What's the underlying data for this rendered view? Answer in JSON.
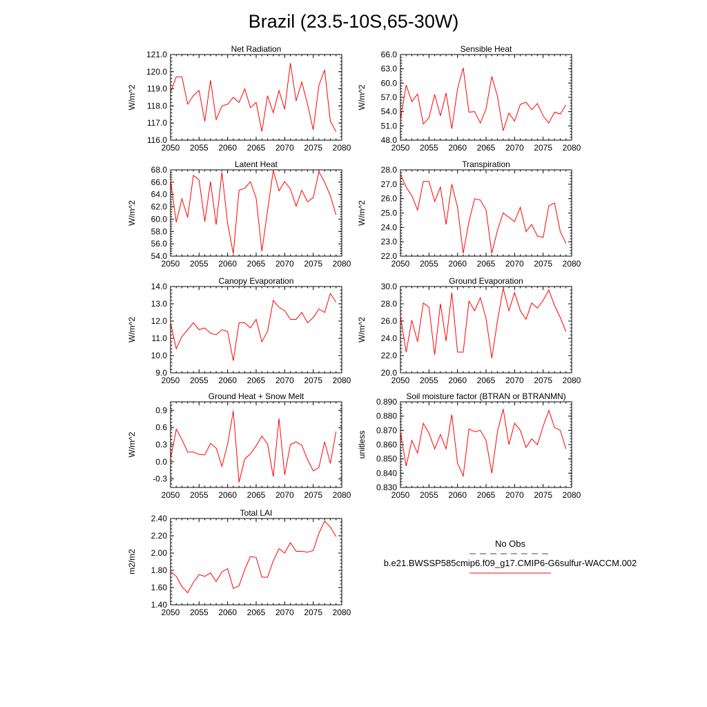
{
  "figure": {
    "title": "Brazil (23.5-10S,65-30W)",
    "line_color": "#ff0000",
    "axis_color": "#000000"
  },
  "legend": {
    "obs_label": "No Obs",
    "obs_line_color": "#3a3ab0",
    "case_label": "b.e21.BWSSP585cmip6.f09_g17.CMIP6-G6sulfur-WACCM.002",
    "case_line_color": "#ff0000"
  },
  "chart_data": [
    {
      "type": "line",
      "title": "Net Radiation",
      "ylabel": "W/m^2",
      "xlim": [
        2050,
        2080
      ],
      "ylim": [
        116.0,
        121.0
      ],
      "yticks": [
        "116.0",
        "117.0",
        "118.0",
        "119.0",
        "120.0",
        "121.0"
      ],
      "xticks": [
        "2050",
        "2055",
        "2060",
        "2065",
        "2070",
        "2075",
        "2080"
      ],
      "x": [
        2050,
        2051,
        2052,
        2053,
        2054,
        2055,
        2056,
        2057,
        2058,
        2059,
        2060,
        2061,
        2062,
        2063,
        2064,
        2065,
        2066,
        2067,
        2068,
        2069,
        2070,
        2071,
        2072,
        2073,
        2074,
        2075,
        2076,
        2077,
        2078,
        2079
      ],
      "values": [
        118.8,
        119.7,
        119.7,
        118.1,
        118.6,
        118.9,
        117.1,
        119.5,
        117.2,
        118.0,
        118.1,
        118.5,
        118.2,
        119.0,
        117.9,
        118.2,
        116.5,
        118.6,
        117.6,
        118.9,
        117.8,
        120.5,
        118.3,
        119.4,
        118.1,
        116.6,
        119.2,
        120.1,
        117.1,
        116.5
      ]
    },
    {
      "type": "line",
      "title": "Sensible Heat",
      "ylabel": "W/m^2",
      "xlim": [
        2050,
        2080
      ],
      "ylim": [
        48.0,
        66.0
      ],
      "yticks": [
        "48.0",
        "51.0",
        "54.0",
        "57.0",
        "60.0",
        "63.0",
        "66.0"
      ],
      "xticks": [
        "2050",
        "2055",
        "2060",
        "2065",
        "2070",
        "2075",
        "2080"
      ],
      "x": [
        2050,
        2051,
        2052,
        2053,
        2054,
        2055,
        2056,
        2057,
        2058,
        2059,
        2060,
        2061,
        2062,
        2063,
        2064,
        2065,
        2066,
        2067,
        2068,
        2069,
        2070,
        2071,
        2072,
        2073,
        2074,
        2075,
        2076,
        2077,
        2078,
        2079
      ],
      "values": [
        52.2,
        59.6,
        56.1,
        57.7,
        51.4,
        52.7,
        57.6,
        53.1,
        57.9,
        50.4,
        58.8,
        63.2,
        53.9,
        54.0,
        51.6,
        54.6,
        61.4,
        57.2,
        50.0,
        53.7,
        52.0,
        55.5,
        56.0,
        54.4,
        55.7,
        53.1,
        51.6,
        53.9,
        53.5,
        55.4
      ]
    },
    {
      "type": "line",
      "title": "Latent Heat",
      "ylabel": "W/m^2",
      "xlim": [
        2050,
        2080
      ],
      "ylim": [
        54.0,
        68.0
      ],
      "yticks": [
        "54.0",
        "56.0",
        "58.0",
        "60.0",
        "62.0",
        "64.0",
        "66.0",
        "68.0"
      ],
      "xticks": [
        "2050",
        "2055",
        "2060",
        "2065",
        "2070",
        "2075",
        "2080"
      ],
      "x": [
        2050,
        2051,
        2052,
        2053,
        2054,
        2055,
        2056,
        2057,
        2058,
        2059,
        2060,
        2061,
        2062,
        2063,
        2064,
        2065,
        2066,
        2067,
        2068,
        2069,
        2070,
        2071,
        2072,
        2073,
        2074,
        2075,
        2076,
        2077,
        2078,
        2079
      ],
      "values": [
        66.3,
        59.5,
        63.3,
        60.3,
        67.1,
        66.4,
        59.6,
        66.1,
        59.1,
        67.6,
        59.3,
        54.4,
        64.7,
        65.0,
        66.1,
        63.4,
        54.8,
        61.4,
        67.9,
        64.6,
        66.1,
        64.9,
        62.1,
        64.7,
        62.8,
        63.5,
        67.7,
        66.0,
        63.8,
        60.7
      ]
    },
    {
      "type": "line",
      "title": "Transpiration",
      "ylabel": "W/m^2",
      "xlim": [
        2050,
        2080
      ],
      "ylim": [
        22.0,
        28.0
      ],
      "yticks": [
        "22.0",
        "23.0",
        "24.0",
        "25.0",
        "26.0",
        "27.0",
        "28.0"
      ],
      "xticks": [
        "2050",
        "2055",
        "2060",
        "2065",
        "2070",
        "2075",
        "2080"
      ],
      "x": [
        2050,
        2051,
        2052,
        2053,
        2054,
        2055,
        2056,
        2057,
        2058,
        2059,
        2060,
        2061,
        2062,
        2063,
        2064,
        2065,
        2066,
        2067,
        2068,
        2069,
        2070,
        2071,
        2072,
        2073,
        2074,
        2075,
        2076,
        2077,
        2078,
        2079
      ],
      "values": [
        27.7,
        26.8,
        26.2,
        25.2,
        27.2,
        27.2,
        25.8,
        26.8,
        24.2,
        27.0,
        25.4,
        22.2,
        24.4,
        26.0,
        25.9,
        25.2,
        22.2,
        23.8,
        25.0,
        24.7,
        24.4,
        25.4,
        23.7,
        24.2,
        23.4,
        23.3,
        25.5,
        25.7,
        23.7,
        22.9
      ]
    },
    {
      "type": "line",
      "title": "Canopy Evaporation",
      "ylabel": "W/m^2",
      "xlim": [
        2050,
        2080
      ],
      "ylim": [
        9.0,
        14.0
      ],
      "yticks": [
        "9.0",
        "10.0",
        "11.0",
        "12.0",
        "13.0",
        "14.0"
      ],
      "xticks": [
        "2050",
        "2055",
        "2060",
        "2065",
        "2070",
        "2075",
        "2080"
      ],
      "x": [
        2050,
        2051,
        2052,
        2053,
        2054,
        2055,
        2056,
        2057,
        2058,
        2059,
        2060,
        2061,
        2062,
        2063,
        2064,
        2065,
        2066,
        2067,
        2068,
        2069,
        2070,
        2071,
        2072,
        2073,
        2074,
        2075,
        2076,
        2077,
        2078,
        2079
      ],
      "values": [
        11.9,
        10.4,
        11.1,
        11.5,
        11.9,
        11.5,
        11.6,
        11.3,
        11.2,
        11.5,
        11.4,
        9.7,
        11.9,
        11.9,
        11.6,
        12.1,
        10.8,
        11.4,
        13.2,
        12.8,
        12.6,
        12.1,
        12.1,
        12.5,
        11.9,
        12.2,
        12.7,
        12.5,
        13.6,
        13.1
      ]
    },
    {
      "type": "line",
      "title": "Ground Evaporation",
      "ylabel": "W/m^2",
      "xlim": [
        2050,
        2080
      ],
      "ylim": [
        20.0,
        30.0
      ],
      "yticks": [
        "20.0",
        "22.0",
        "24.0",
        "26.0",
        "28.0",
        "30.0"
      ],
      "xticks": [
        "2050",
        "2055",
        "2060",
        "2065",
        "2070",
        "2075",
        "2080"
      ],
      "x": [
        2050,
        2051,
        2052,
        2053,
        2054,
        2055,
        2056,
        2057,
        2058,
        2059,
        2060,
        2061,
        2062,
        2063,
        2064,
        2065,
        2066,
        2067,
        2068,
        2069,
        2070,
        2071,
        2072,
        2073,
        2074,
        2075,
        2076,
        2077,
        2078,
        2079
      ],
      "values": [
        26.6,
        22.4,
        26.1,
        23.6,
        28.1,
        27.6,
        22.1,
        28.0,
        23.7,
        29.3,
        22.4,
        22.4,
        28.3,
        27.2,
        28.7,
        26.3,
        21.7,
        26.0,
        29.8,
        27.2,
        29.3,
        27.2,
        26.2,
        28.1,
        27.5,
        28.4,
        29.6,
        27.8,
        26.4,
        24.8
      ]
    },
    {
      "type": "line",
      "title": "Ground Heat + Snow Melt",
      "ylabel": "W/m^2",
      "xlim": [
        2050,
        2080
      ],
      "ylim": [
        -0.45,
        1.05
      ],
      "yticks": [
        "-0.3",
        "0.0",
        "0.3",
        "0.6",
        "0.9"
      ],
      "ytick_values": [
        -0.3,
        0.0,
        0.3,
        0.6,
        0.9
      ],
      "xticks": [
        "2050",
        "2055",
        "2060",
        "2065",
        "2070",
        "2075",
        "2080"
      ],
      "x": [
        2050,
        2051,
        2052,
        2053,
        2054,
        2055,
        2056,
        2057,
        2058,
        2059,
        2060,
        2061,
        2062,
        2063,
        2064,
        2065,
        2066,
        2067,
        2068,
        2069,
        2070,
        2071,
        2072,
        2073,
        2074,
        2075,
        2076,
        2077,
        2078,
        2079
      ],
      "values": [
        0.05,
        0.57,
        0.39,
        0.17,
        0.17,
        0.13,
        0.12,
        0.32,
        0.24,
        -0.08,
        0.31,
        0.89,
        -0.36,
        0.05,
        0.14,
        0.28,
        0.45,
        0.31,
        -0.26,
        0.76,
        -0.23,
        0.3,
        0.35,
        0.29,
        0.04,
        -0.16,
        -0.1,
        0.35,
        -0.03,
        0.53
      ]
    },
    {
      "type": "line",
      "title": "Soil moisture factor (BTRAN or BTRANMN)",
      "ylabel": "unitless",
      "xlim": [
        2050,
        2080
      ],
      "ylim": [
        0.83,
        0.89
      ],
      "yticks": [
        "0.830",
        "0.840",
        "0.850",
        "0.860",
        "0.870",
        "0.880",
        "0.890"
      ],
      "xticks": [
        "2050",
        "2055",
        "2060",
        "2065",
        "2070",
        "2075",
        "2080"
      ],
      "x": [
        2050,
        2051,
        2052,
        2053,
        2054,
        2055,
        2056,
        2057,
        2058,
        2059,
        2060,
        2061,
        2062,
        2063,
        2064,
        2065,
        2066,
        2067,
        2068,
        2069,
        2070,
        2071,
        2072,
        2073,
        2074,
        2075,
        2076,
        2077,
        2078,
        2079
      ],
      "values": [
        0.869,
        0.845,
        0.863,
        0.854,
        0.875,
        0.868,
        0.857,
        0.867,
        0.857,
        0.881,
        0.847,
        0.838,
        0.871,
        0.869,
        0.87,
        0.863,
        0.84,
        0.869,
        0.885,
        0.86,
        0.875,
        0.87,
        0.858,
        0.864,
        0.86,
        0.873,
        0.884,
        0.872,
        0.87,
        0.857
      ]
    },
    {
      "type": "line",
      "title": "Total LAI",
      "ylabel": "m2/m2",
      "xlim": [
        2050,
        2080
      ],
      "ylim": [
        1.4,
        2.4
      ],
      "yticks": [
        "1.40",
        "1.60",
        "1.80",
        "2.00",
        "2.20",
        "2.40"
      ],
      "xticks": [
        "2050",
        "2055",
        "2060",
        "2065",
        "2070",
        "2075",
        "2080"
      ],
      "x": [
        2050,
        2051,
        2052,
        2053,
        2054,
        2055,
        2056,
        2057,
        2058,
        2059,
        2060,
        2061,
        2062,
        2063,
        2064,
        2065,
        2066,
        2067,
        2068,
        2069,
        2070,
        2071,
        2072,
        2073,
        2074,
        2075,
        2076,
        2077,
        2078,
        2079
      ],
      "values": [
        1.79,
        1.73,
        1.61,
        1.54,
        1.66,
        1.75,
        1.73,
        1.77,
        1.67,
        1.78,
        1.82,
        1.59,
        1.62,
        1.81,
        1.96,
        1.95,
        1.72,
        1.72,
        1.91,
        2.05,
        2.0,
        2.12,
        2.02,
        2.02,
        2.01,
        2.03,
        2.23,
        2.37,
        2.3,
        2.19
      ]
    }
  ]
}
